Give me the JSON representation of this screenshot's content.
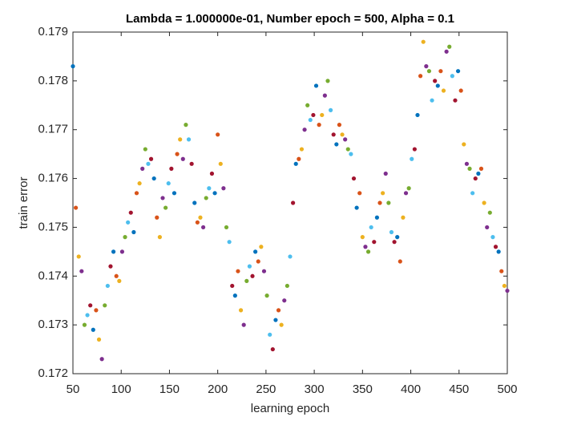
{
  "chart_data": {
    "type": "scatter",
    "title": "Lambda = 1.000000e-01, Number epoch = 500, Alpha = 0.1",
    "x_label": "learning epoch",
    "y_label": "train error",
    "xlim": [
      50,
      500
    ],
    "xticks": [
      50,
      100,
      150,
      200,
      250,
      300,
      350,
      400,
      450,
      500
    ],
    "ylim": [
      0.172,
      0.179
    ],
    "yticks": [
      0.172,
      0.173,
      0.174,
      0.175,
      0.176,
      0.177,
      0.178,
      0.179
    ],
    "color_cycle": [
      "#0072BD",
      "#D95319",
      "#EDB120",
      "#7E2F8E",
      "#77AC30",
      "#4DBEEE",
      "#A2142F"
    ],
    "x": [
      50,
      53,
      56,
      59,
      62,
      65,
      68,
      71,
      74,
      77,
      80,
      83,
      86,
      89,
      92,
      95,
      98,
      101,
      104,
      107,
      110,
      113,
      116,
      119,
      122,
      125,
      128,
      131,
      134,
      137,
      140,
      143,
      146,
      149,
      152,
      155,
      158,
      161,
      164,
      167,
      170,
      173,
      176,
      179,
      182,
      185,
      188,
      191,
      194,
      197,
      200,
      203,
      206,
      209,
      212,
      215,
      218,
      221,
      224,
      227,
      230,
      233,
      236,
      239,
      242,
      245,
      248,
      251,
      254,
      257,
      260,
      263,
      266,
      269,
      272,
      275,
      278,
      281,
      284,
      287,
      290,
      293,
      296,
      299,
      302,
      305,
      308,
      311,
      314,
      317,
      320,
      323,
      326,
      329,
      332,
      335,
      338,
      341,
      344,
      347,
      350,
      353,
      356,
      359,
      362,
      365,
      368,
      371,
      374,
      377,
      380,
      383,
      386,
      389,
      392,
      395,
      398,
      401,
      404,
      407,
      410,
      413,
      416,
      419,
      422,
      425,
      428,
      431,
      434,
      437,
      440,
      443,
      446,
      449,
      452,
      455,
      458,
      461,
      464,
      467,
      470,
      473,
      476,
      479,
      482,
      485,
      488,
      491,
      494,
      497,
      500
    ],
    "values": [
      0.1783,
      0.1754,
      0.1744,
      0.1741,
      0.173,
      0.1732,
      0.1734,
      0.1729,
      0.1733,
      0.1727,
      0.1723,
      0.1734,
      0.1738,
      0.1742,
      0.1745,
      0.174,
      0.1739,
      0.1745,
      0.1748,
      0.1751,
      0.1753,
      0.1749,
      0.1757,
      0.1759,
      0.1762,
      0.1766,
      0.1763,
      0.1764,
      0.176,
      0.1752,
      0.1748,
      0.1756,
      0.1754,
      0.1759,
      0.1762,
      0.1757,
      0.1765,
      0.1768,
      0.1764,
      0.1771,
      0.1768,
      0.1763,
      0.1755,
      0.1751,
      0.1752,
      0.175,
      0.1756,
      0.1758,
      0.1761,
      0.1757,
      0.1769,
      0.1763,
      0.1758,
      0.175,
      0.1747,
      0.1738,
      0.1736,
      0.1741,
      0.1733,
      0.173,
      0.1739,
      0.1742,
      0.174,
      0.1745,
      0.1743,
      0.1746,
      0.1741,
      0.1736,
      0.1728,
      0.1725,
      0.1731,
      0.1733,
      0.173,
      0.1735,
      0.1738,
      0.1744,
      0.1755,
      0.1763,
      0.1764,
      0.1766,
      0.177,
      0.1775,
      0.1772,
      0.1773,
      0.1779,
      0.1771,
      0.1773,
      0.1777,
      0.178,
      0.1774,
      0.1769,
      0.1767,
      0.1771,
      0.1769,
      0.1768,
      0.1766,
      0.1765,
      0.176,
      0.1754,
      0.1757,
      0.1748,
      0.1746,
      0.1745,
      0.175,
      0.1747,
      0.1752,
      0.1755,
      0.1757,
      0.1761,
      0.1755,
      0.1749,
      0.1747,
      0.1748,
      0.1743,
      0.1752,
      0.1757,
      0.1758,
      0.1764,
      0.1766,
      0.1773,
      0.1781,
      0.1788,
      0.1783,
      0.1782,
      0.1776,
      0.178,
      0.1779,
      0.1782,
      0.1778,
      0.1786,
      0.1787,
      0.1781,
      0.1776,
      0.1782,
      0.1778,
      0.1767,
      0.1763,
      0.1762,
      0.1757,
      0.176,
      0.1761,
      0.1762,
      0.1755,
      0.175,
      0.1753,
      0.1748,
      0.1746,
      0.1745,
      0.1741,
      0.1738,
      0.1737
    ]
  }
}
